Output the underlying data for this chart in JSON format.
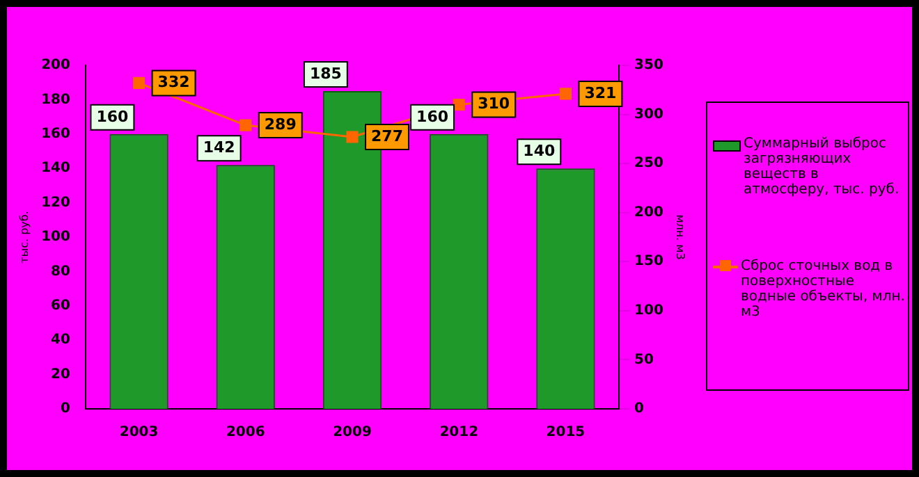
{
  "chart_data": {
    "type": "bar",
    "categories": [
      "2003",
      "2006",
      "2009",
      "2012",
      "2015"
    ],
    "series": [
      {
        "name": "Суммарный выброс загрязняющих веществ в атмосферу, тыс. руб.",
        "color": "#1f9a2a",
        "values": [
          160,
          142,
          185,
          160,
          140
        ]
      },
      {
        "name": "Сброс сточных вод в поверхностные водные объекты, млн. м3",
        "type": "line",
        "axis": "y2",
        "color": "#ff6600",
        "values": [
          332,
          289,
          277,
          310,
          321
        ],
        "marker": "square"
      }
    ],
    "ylabel": "тыс. руб.",
    "y2label": "млн. м3",
    "ylim": [
      0,
      200
    ],
    "yticks": [
      0,
      20,
      40,
      60,
      80,
      100,
      120,
      140,
      160,
      180,
      200
    ],
    "y2lim": [
      0,
      350
    ],
    "y2ticks": [
      0,
      50,
      100,
      150,
      200,
      250,
      300,
      350
    ],
    "grid": false,
    "legend": "right",
    "data_labels": true
  }
}
